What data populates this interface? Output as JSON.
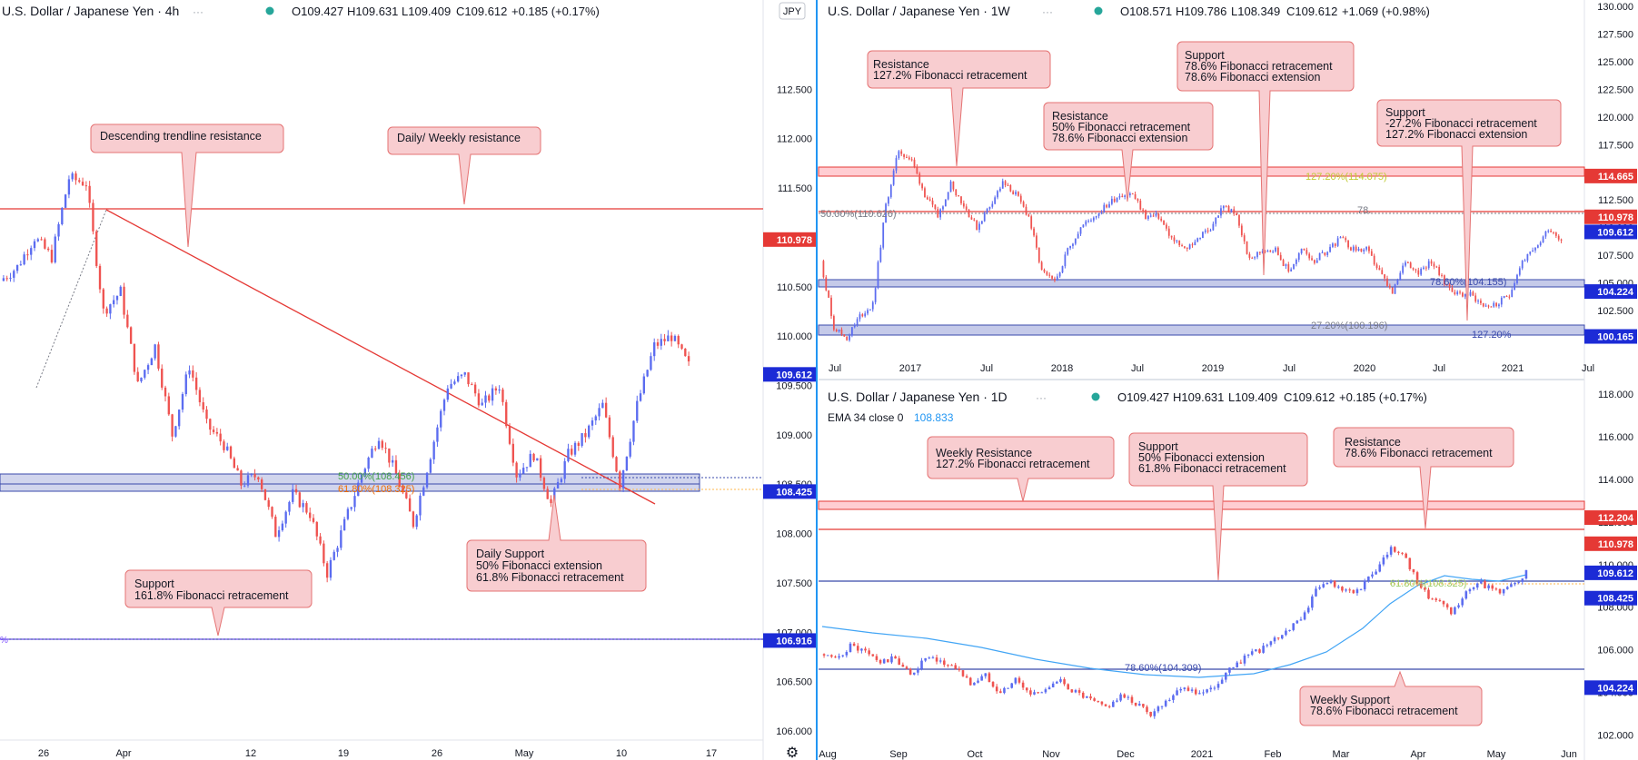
{
  "colors": {
    "up": "#5b6cf0",
    "down": "#ef5350",
    "res": "#e53935",
    "sup": "#3949ab",
    "bg_band": "#c5cae9",
    "note_bg": "#f8cdd0",
    "note_border": "#e57373",
    "ema": "#42a5f5",
    "fib": "#8bc34a"
  },
  "chart_data": [
    {
      "id": "h4",
      "type": "candlestick",
      "title": "U.S. Dollar / Japanese Yen · 4h",
      "ohlc": {
        "o": "O109.427",
        "h": "H109.631",
        "l": "L109.409",
        "c": "C109.612",
        "chg": "+0.185 (+0.17%)"
      },
      "currency": "JPY",
      "ylim": [
        106.0,
        113.0
      ],
      "yticks": [
        "112.500",
        "112.000",
        "111.500",
        "111.000",
        "110.500",
        "110.000",
        "109.500",
        "109.000",
        "108.500",
        "108.000",
        "107.500",
        "107.000",
        "106.500",
        "106.000"
      ],
      "xticks": [
        "26",
        "Apr",
        "12",
        "19",
        "26",
        "May",
        "10",
        "17"
      ],
      "price_labels": [
        {
          "text": "110.978",
          "value": 110.978,
          "kind": "res"
        },
        {
          "text": "109.612",
          "value": 109.612,
          "kind": "sup"
        },
        {
          "text": "108.425",
          "value": 108.425,
          "kind": "sup"
        },
        {
          "text": "106.916",
          "value": 106.916,
          "kind": "sup"
        }
      ],
      "fib_labels": [
        "50.00%(108.456)",
        "61.80%(108.325)"
      ],
      "annotations": [
        {
          "lines": [
            "Descending trendline resistance"
          ]
        },
        {
          "lines": [
            "Daily/ Weekly resistance"
          ]
        },
        {
          "lines": [
            "Daily Support",
            "50% Fibonacci extension",
            "61.8% Fibonacci retracement"
          ]
        },
        {
          "lines": [
            "Support",
            "161.8% Fibonacci retracement"
          ]
        }
      ],
      "path": [
        110.56,
        110.7,
        111.0,
        110.8,
        111.6,
        111.55,
        110.25,
        110.45,
        109.5,
        109.9,
        109.0,
        109.7,
        109.1,
        108.9,
        108.5,
        108.6,
        108.0,
        108.4,
        108.2,
        107.6,
        108.1,
        108.6,
        109.0,
        108.6,
        108.1,
        108.8,
        109.5,
        109.6,
        109.3,
        109.5,
        108.6,
        108.8,
        108.3,
        108.8,
        109.0,
        109.3,
        108.5,
        109.3,
        109.9,
        110.0,
        109.7
      ]
    },
    {
      "id": "w1",
      "type": "candlestick",
      "title": "U.S. Dollar / Japanese Yen · 1W",
      "ohlc": {
        "o": "O108.571",
        "h": "H109.786",
        "l": "L108.349",
        "c": "C109.612",
        "chg": "+1.069 (+0.98%)"
      },
      "ylim": [
        97.5,
        130.0
      ],
      "yticks": [
        "130.000",
        "127.500",
        "125.000",
        "122.500",
        "120.000",
        "117.500",
        "115.000",
        "112.500",
        "110.000",
        "107.500",
        "105.000",
        "102.500",
        "100.000"
      ],
      "xticks": [
        "Jul",
        "2017",
        "Jul",
        "2018",
        "Jul",
        "2019",
        "Jul",
        "2020",
        "Jul",
        "2021",
        "Jul"
      ],
      "price_labels": [
        {
          "text": "114.665",
          "value": 114.665,
          "kind": "res"
        },
        {
          "text": "110.978",
          "value": 110.978,
          "kind": "res"
        },
        {
          "text": "109.612",
          "value": 109.612,
          "kind": "sup"
        },
        {
          "text": "104.224",
          "value": 104.224,
          "kind": "sup"
        },
        {
          "text": "100.165",
          "value": 100.165,
          "kind": "sup"
        }
      ],
      "fib_labels": [
        "127.20%(114.075)",
        "50.00%(110.626)",
        "78.",
        "78.60%(104.155)",
        "27.20%(100.196)",
        "127.20%"
      ],
      "annotations": [
        {
          "lines": [
            "Resistance",
            "127.2% Fibonacci retracement"
          ]
        },
        {
          "lines": [
            "Resistance",
            "50% Fibonacci retracement",
            "78.6% Fibonacci extension"
          ]
        },
        {
          "lines": [
            "Support",
            "78.6% Fibonacci retracement",
            "78.6% Fibonacci extension"
          ]
        },
        {
          "lines": [
            "Support",
            "-27.2% Fibonacci retracement",
            "127.2% Fibonacci extension"
          ]
        }
      ],
      "path": [
        107,
        101,
        100,
        102,
        103,
        112,
        117,
        116,
        113,
        111,
        114,
        112,
        110,
        112,
        114,
        113,
        111,
        106,
        105,
        108,
        110,
        111,
        112,
        113,
        113,
        111,
        111,
        109,
        108,
        109,
        110,
        112,
        111,
        107,
        108,
        108,
        106,
        108,
        107,
        108,
        109,
        108,
        108,
        106,
        104,
        107,
        106,
        107,
        105,
        104,
        104,
        103,
        103,
        104,
        107,
        108,
        110,
        109
      ]
    },
    {
      "id": "d1",
      "type": "candlestick",
      "title": "U.S. Dollar / Japanese Yen · 1D",
      "ohlc": {
        "o": "O109.427",
        "h": "H109.631",
        "l": "L109.409",
        "c": "C109.612",
        "chg": "+0.185 (+0.17%)"
      },
      "indicator": {
        "label": "EMA 34 close 0",
        "value": "108.833"
      },
      "ylim": [
        101.0,
        118.0
      ],
      "yticks": [
        "118.000",
        "116.000",
        "114.000",
        "112.000",
        "110.000",
        "108.000",
        "106.000",
        "104.000",
        "102.000"
      ],
      "xticks": [
        "Aug",
        "Sep",
        "Oct",
        "Nov",
        "Dec",
        "2021",
        "Feb",
        "Mar",
        "Apr",
        "May",
        "Jun"
      ],
      "price_labels": [
        {
          "text": "112.204",
          "value": 112.204,
          "kind": "res"
        },
        {
          "text": "110.978",
          "value": 110.978,
          "kind": "res"
        },
        {
          "text": "109.612",
          "value": 109.612,
          "kind": "sup"
        },
        {
          "text": "108.425",
          "value": 108.425,
          "kind": "sup"
        },
        {
          "text": "104.224",
          "value": 104.224,
          "kind": "sup"
        }
      ],
      "fib_labels": [
        "61.80%(108.325)",
        "78.60%(104.309)"
      ],
      "annotations": [
        {
          "lines": [
            "Weekly Resistance",
            "127.2% Fibonacci retracement"
          ]
        },
        {
          "lines": [
            "Support",
            "50% Fibonacci extension",
            "61.8% Fibonacci retracement"
          ]
        },
        {
          "lines": [
            "Resistance",
            "78.6% Fibonacci retracement"
          ]
        },
        {
          "lines": [
            "Weekly Support",
            "78.6% Fibonacci retracement"
          ]
        }
      ],
      "path": [
        105.8,
        105.5,
        106.2,
        105.9,
        105.4,
        105.6,
        104.8,
        105.6,
        105.4,
        105.2,
        104.4,
        104.8,
        104.0,
        104.6,
        103.9,
        104.2,
        104.5,
        104.0,
        103.6,
        103.3,
        103.8,
        103.5,
        103.0,
        103.6,
        104.3,
        104.0,
        104.1,
        104.9,
        105.5,
        105.9,
        106.3,
        106.9,
        107.4,
        108.8,
        109.2,
        108.7,
        108.9,
        109.7,
        110.7,
        110.3,
        108.8,
        108.3,
        107.7,
        108.6,
        109.1,
        108.7,
        109.0,
        109.6
      ]
    }
  ],
  "ui": {
    "gear": "⚙"
  }
}
